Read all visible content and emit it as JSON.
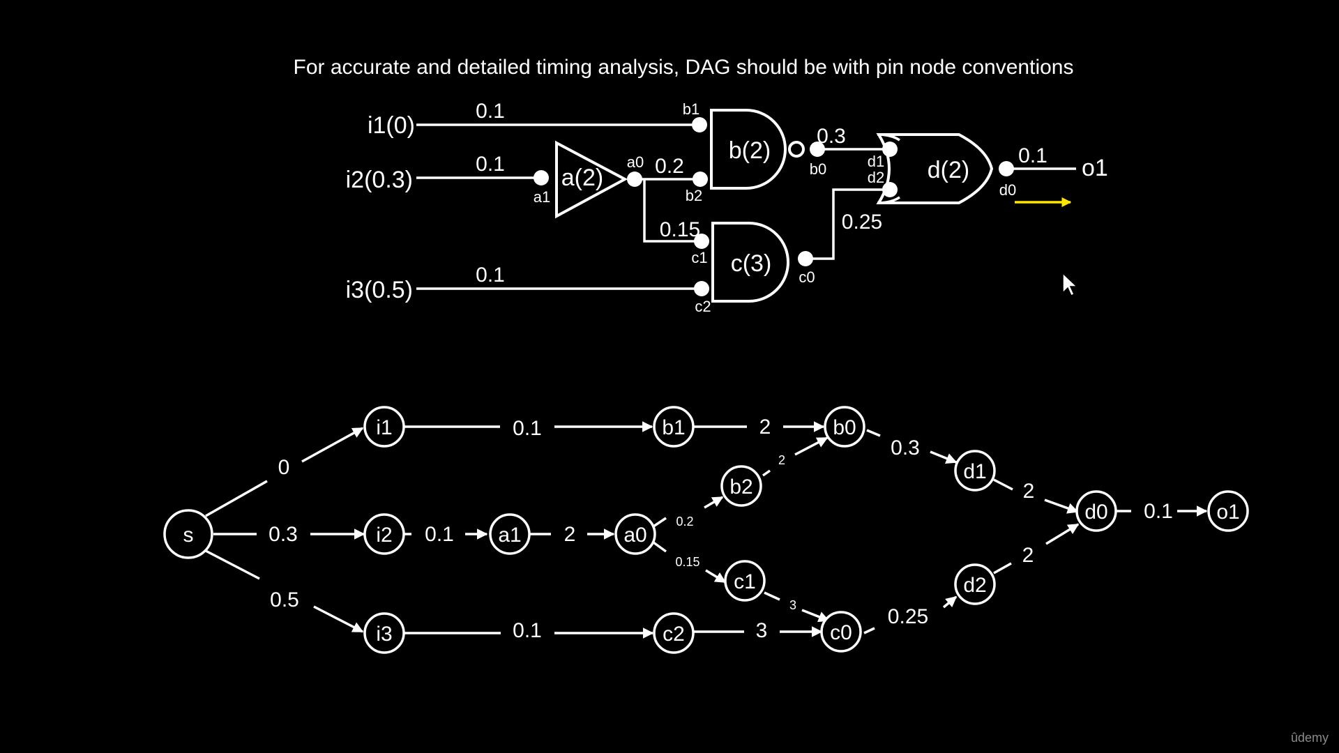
{
  "title": "For accurate  and detailed timing analysis, DAG should be with pin node conventions",
  "colors": {
    "background": "#000000",
    "foreground": "#ffffff",
    "arrow": "#ffe600",
    "watermark": "#8a8a8a"
  },
  "circuit": {
    "inputs": {
      "i1": "i1(0)",
      "i2": "i2(0.3)",
      "i3": "i3(0.5)"
    },
    "output": "o1",
    "gates": {
      "a": "a(2)",
      "b": "b(2)",
      "c": "c(3)",
      "d": "d(2)"
    },
    "pins": {
      "a1": "a1",
      "a0": "a0",
      "b1": "b1",
      "b2": "b2",
      "b0": "b0",
      "c1": "c1",
      "c2": "c2",
      "c0": "c0",
      "d1": "d1",
      "d2": "d2",
      "d0": "d0"
    },
    "wire_delays": {
      "i1_b1": "0.1",
      "i2_a1": "0.1",
      "a0_b2": "0.2",
      "a0_c1": "0.15",
      "i3_c2": "0.1",
      "b0_d1": "0.3",
      "c0_d2": "0.25",
      "d0_o1": "0.1"
    }
  },
  "dag": {
    "nodes": {
      "s": "s",
      "i1": "i1",
      "i2": "i2",
      "i3": "i3",
      "a1": "a1",
      "a0": "a0",
      "b1": "b1",
      "b2": "b2",
      "b0": "b0",
      "c1": "c1",
      "c2": "c2",
      "c0": "c0",
      "d1": "d1",
      "d2": "d2",
      "d0": "d0",
      "o1": "o1"
    },
    "edges": {
      "s_i1": "0",
      "s_i2": "0.3",
      "s_i3": "0.5",
      "i1_b1": "0.1",
      "b1_b0": "2",
      "b2_b0": "2",
      "i2_a1": "0.1",
      "a1_a0": "2",
      "a0_b2": "0.2",
      "a0_c1": "0.15",
      "i3_c2": "0.1",
      "c2_c0": "3",
      "c1_c0": "3",
      "b0_d1": "0.3",
      "c0_d2": "0.25",
      "d1_d0": "2",
      "d2_d0": "2",
      "d0_o1": "0.1"
    }
  },
  "watermark": "ûdemy"
}
